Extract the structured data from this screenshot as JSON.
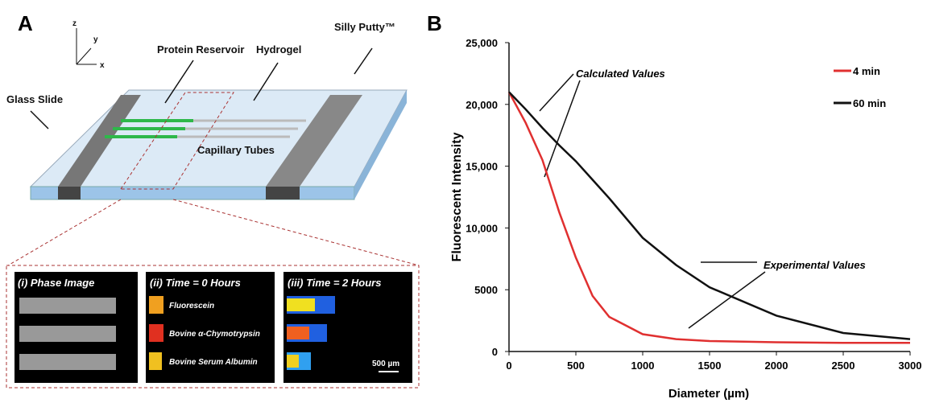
{
  "panel_a": {
    "label": "A",
    "axes": {
      "z": "z",
      "y": "y",
      "x": "x"
    },
    "labels": {
      "protein_reservoir": "Protein Reservoir",
      "hydrogel": "Hydrogel",
      "silly_putty": "Silly Putty™",
      "glass_slide": "Glass Slide",
      "capillary_tubes": "Capillary Tubes"
    },
    "insets": [
      {
        "title": "(i) Phase Image"
      },
      {
        "title": "(ii) Time = 0 Hours",
        "rows": [
          "Fluorescein",
          "Bovine α-Chymotrypsin",
          "Bovine Serum Albumin"
        ]
      },
      {
        "title": "(iii) Time = 2 Hours",
        "scale_bar": "500 µm"
      }
    ]
  },
  "chart_data": {
    "type": "line",
    "panel_label": "B",
    "x_label": "Diameter (µm)",
    "y_label": "Fluorescent Intensity",
    "x": [
      0,
      125,
      250,
      375,
      500,
      625,
      750,
      1000,
      1250,
      1500,
      2000,
      2500,
      3000
    ],
    "series": [
      {
        "name": "4 min",
        "color": "#e03030",
        "values": [
          21000,
          18500,
          15500,
          11300,
          7600,
          4500,
          2800,
          1400,
          1000,
          850,
          750,
          700,
          700
        ]
      },
      {
        "name": "60 min",
        "color": "#111111",
        "values": [
          21000,
          19600,
          18100,
          16700,
          15400,
          13900,
          12400,
          9200,
          7000,
          5200,
          2900,
          1500,
          1000
        ]
      }
    ],
    "xlim": [
      0,
      3000
    ],
    "xticks": [
      0,
      500,
      1000,
      1500,
      2000,
      2500,
      3000
    ],
    "ylim": [
      0,
      25000
    ],
    "yticks": [
      0,
      5000,
      {
        "value": 10000,
        "label": "10,000"
      },
      {
        "value": 15000,
        "label": "15,000"
      },
      {
        "value": 20000,
        "label": "20,000"
      },
      {
        "value": 25000,
        "label": "25,000"
      }
    ],
    "legend": "upper right",
    "annotations": [
      "Calculated Values",
      "Experimental Values"
    ]
  }
}
